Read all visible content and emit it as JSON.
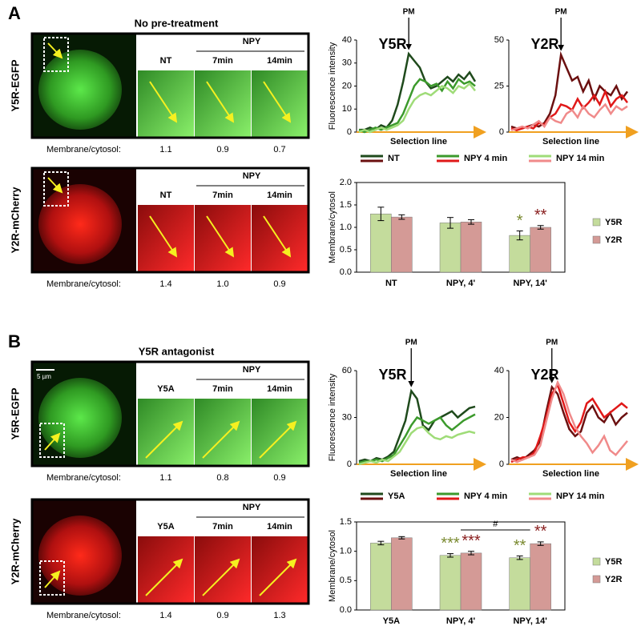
{
  "panels": [
    {
      "label": "A",
      "title": "No pre-treatment",
      "rows": [
        {
          "name": "Y5R-EGFP",
          "group": "NPY",
          "columns": [
            "NT",
            "7min",
            "14min"
          ],
          "ratio_label": "Membrane/cytosol:",
          "ratios": [
            "1.1",
            "0.9",
            "0.7"
          ]
        },
        {
          "name": "Y2R-mCherry",
          "group": "NPY",
          "columns": [
            "NT",
            "7min",
            "14min"
          ],
          "ratio_label": "Membrane/cytosol:",
          "ratios": [
            "1.4",
            "1.0",
            "0.9"
          ]
        }
      ]
    },
    {
      "label": "B",
      "title": "Y5R antagonist",
      "scale_bar": "5 µm",
      "rows": [
        {
          "name": "Y5R-EGFP",
          "group": "NPY",
          "columns": [
            "Y5A",
            "7min",
            "14min"
          ],
          "ratio_label": "Membrane/cytosol:",
          "ratios": [
            "1.1",
            "0.8",
            "0.9"
          ]
        },
        {
          "name": "Y2R-mCherry",
          "group": "NPY",
          "columns": [
            "Y5A",
            "7min",
            "14min"
          ],
          "ratio_label": "Membrane/cytosol:",
          "ratios": [
            "1.4",
            "0.9",
            "1.3"
          ]
        }
      ]
    }
  ],
  "chart_data": [
    {
      "type": "line",
      "title": "Y5R",
      "y_label": "Fluorescence intensity",
      "x_label": "Selection line",
      "annotation": "PM",
      "ylim": [
        0,
        40
      ],
      "yticks": [
        0,
        10,
        20,
        30,
        40
      ],
      "series": [
        {
          "name": "NT",
          "color": "#1f4a1c",
          "values": [
            1,
            1,
            2,
            1,
            3,
            2,
            5,
            12,
            22,
            34,
            31,
            28,
            22,
            19,
            20,
            22,
            24,
            22,
            25,
            23,
            26,
            22
          ]
        },
        {
          "name": "NPY 4 min",
          "color": "#3c9a2c",
          "values": [
            1,
            0,
            1,
            2,
            1,
            2,
            3,
            4,
            8,
            14,
            20,
            23,
            22,
            20,
            21,
            18,
            22,
            19,
            23,
            21,
            22,
            20
          ]
        },
        {
          "name": "NPY 14 min",
          "color": "#9fdc78",
          "values": [
            0,
            1,
            0,
            1,
            2,
            1,
            2,
            3,
            5,
            10,
            14,
            16,
            17,
            16,
            18,
            20,
            19,
            17,
            20,
            19,
            21,
            18
          ]
        }
      ]
    },
    {
      "type": "line",
      "title": "Y2R",
      "x_label": "Selection line",
      "annotation": "PM",
      "ylim": [
        0,
        50
      ],
      "yticks": [
        0,
        25,
        50
      ],
      "series": [
        {
          "color": "#6b1010",
          "values": [
            3,
            2,
            2,
            3,
            4,
            3,
            5,
            10,
            20,
            42,
            35,
            28,
            30,
            22,
            28,
            18,
            25,
            22,
            20,
            25,
            18,
            22
          ]
        },
        {
          "color": "#e01818",
          "values": [
            2,
            1,
            2,
            3,
            2,
            5,
            4,
            8,
            10,
            15,
            14,
            12,
            18,
            13,
            16,
            20,
            15,
            22,
            14,
            18,
            20,
            16
          ]
        },
        {
          "color": "#f08a8a",
          "values": [
            1,
            2,
            3,
            2,
            4,
            6,
            3,
            8,
            6,
            5,
            10,
            12,
            8,
            14,
            10,
            8,
            12,
            15,
            10,
            14,
            12,
            14
          ]
        }
      ]
    },
    {
      "type": "bar",
      "y_label": "Membrane/cytosol",
      "ylim": [
        0,
        2
      ],
      "yticks": [
        {
          "value": 0,
          "label": "0.0"
        },
        {
          "value": 0.5,
          "label": "0.5"
        },
        {
          "value": 1,
          "label": "1.0"
        },
        {
          "value": 1.5,
          "label": "1.5"
        },
        {
          "value": 2,
          "label": "2.0"
        }
      ],
      "categories": [
        "NT",
        "NPY, 4'",
        "NPY, 14'"
      ],
      "series": [
        {
          "name": "Y5R",
          "color": "#c4dc9c",
          "values": [
            1.3,
            1.1,
            0.82
          ],
          "errors": [
            0.15,
            0.12,
            0.1
          ],
          "significance": [
            null,
            null,
            "*"
          ],
          "significance_color": "#7a8a30"
        },
        {
          "name": "Y2R",
          "color": "#d49a96",
          "values": [
            1.23,
            1.12,
            1.0
          ],
          "errors": [
            0.05,
            0.05,
            0.04
          ],
          "significance": [
            null,
            null,
            "**"
          ],
          "significance_color": "#8a2020"
        }
      ]
    },
    {
      "type": "line",
      "title": "Y5R",
      "y_label": "Fluorescence intensity",
      "x_label": "Selection line",
      "annotation": "PM",
      "ylim": [
        0,
        60
      ],
      "yticks": [
        0,
        30,
        60
      ],
      "series": [
        {
          "name": "Y5A",
          "color": "#1f4a1c",
          "values": [
            2,
            3,
            2,
            4,
            3,
            5,
            8,
            18,
            28,
            47,
            42,
            25,
            22,
            28,
            30,
            32,
            34,
            30,
            33,
            36,
            37
          ]
        },
        {
          "name": "NPY 4 min",
          "color": "#3c9a2c",
          "values": [
            1,
            2,
            2,
            3,
            2,
            4,
            6,
            12,
            18,
            25,
            30,
            28,
            26,
            28,
            30,
            25,
            22,
            25,
            28,
            30,
            32
          ]
        },
        {
          "name": "NPY 14 min",
          "color": "#9fdc78",
          "values": [
            0,
            1,
            2,
            1,
            3,
            2,
            5,
            8,
            14,
            20,
            23,
            24,
            20,
            17,
            16,
            18,
            17,
            19,
            20,
            21,
            20
          ]
        }
      ]
    },
    {
      "type": "line",
      "title": "Y2R",
      "x_label": "Selection line",
      "annotation": "PM",
      "ylim": [
        0,
        40
      ],
      "yticks": [
        0,
        20,
        40
      ],
      "series": [
        {
          "color": "#6b1010",
          "values": [
            2,
            3,
            2,
            4,
            6,
            10,
            22,
            33,
            30,
            22,
            15,
            12,
            14,
            22,
            25,
            20,
            18,
            22,
            17,
            20,
            22
          ]
        },
        {
          "color": "#e01818",
          "values": [
            1,
            2,
            3,
            3,
            5,
            12,
            20,
            30,
            34,
            26,
            18,
            14,
            18,
            26,
            28,
            24,
            20,
            22,
            24,
            26,
            24
          ]
        },
        {
          "color": "#f08a8a",
          "values": [
            2,
            1,
            2,
            3,
            4,
            8,
            18,
            28,
            35,
            30,
            22,
            16,
            12,
            9,
            5,
            8,
            12,
            6,
            4,
            7,
            10
          ]
        }
      ]
    },
    {
      "type": "bar",
      "y_label": "Membrane/cytosol",
      "ylim": [
        0,
        1.5
      ],
      "annotation": "#",
      "yticks": [
        {
          "value": 0,
          "label": "0.0"
        },
        {
          "value": 0.5,
          "label": "0.5"
        },
        {
          "value": 1,
          "label": "1.0"
        },
        {
          "value": 1.5,
          "label": "1.5"
        }
      ],
      "categories": [
        "Y5A",
        "NPY, 4'",
        "NPY, 14'"
      ],
      "series": [
        {
          "name": "Y5R",
          "color": "#c4dc9c",
          "values": [
            1.14,
            0.93,
            0.89
          ],
          "errors": [
            0.03,
            0.03,
            0.03
          ],
          "significance": [
            null,
            "***",
            "**"
          ],
          "significance_color": "#7a8a30"
        },
        {
          "name": "Y2R",
          "color": "#d49a96",
          "values": [
            1.23,
            0.97,
            1.13
          ],
          "errors": [
            0.02,
            0.03,
            0.03
          ],
          "significance": [
            null,
            "***",
            "**"
          ],
          "significance_color": "#8a2020"
        }
      ]
    }
  ]
}
